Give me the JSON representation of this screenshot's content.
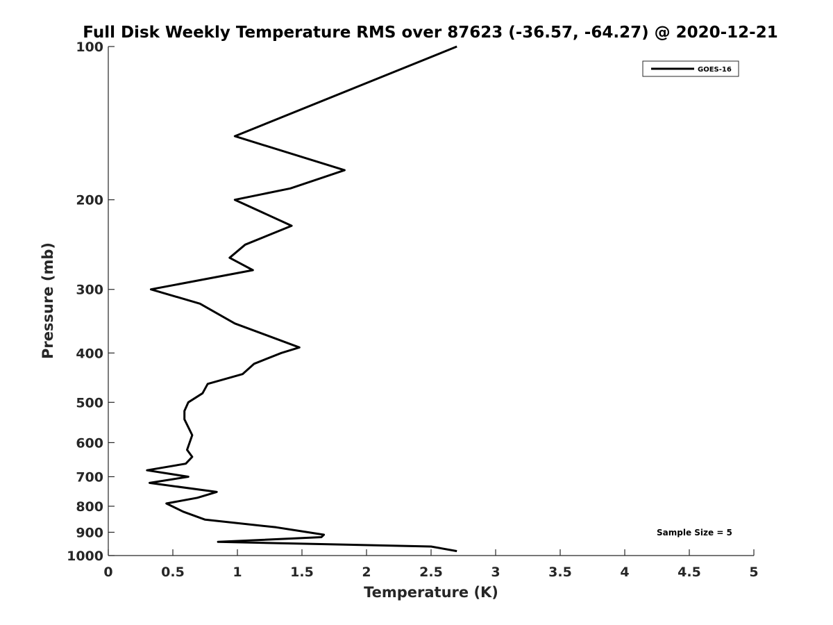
{
  "chart_data": {
    "type": "line",
    "title": "Full Disk Weekly Temperature RMS over 87623 (-36.57, -64.27) @ 2020-12-21",
    "xlabel": "Temperature (K)",
    "ylabel": "Pressure (mb)",
    "xlim": [
      0,
      5
    ],
    "ylim": [
      100,
      1000
    ],
    "y_scale": "log",
    "y_reversed": true,
    "grid": false,
    "legend_position": "top-right",
    "x_ticks": [
      "0",
      "0.5",
      "1",
      "1.5",
      "2",
      "2.5",
      "3",
      "3.5",
      "4",
      "4.5",
      "5"
    ],
    "y_ticks": [
      "100",
      "200",
      "300",
      "400",
      "500",
      "600",
      "700",
      "800",
      "900",
      "1000"
    ],
    "series": [
      {
        "name": "GOES-16",
        "color": "#000000",
        "points": [
          [
            2.7,
            100
          ],
          [
            0.98,
            150
          ],
          [
            1.83,
            175
          ],
          [
            1.41,
            190
          ],
          [
            0.98,
            200
          ],
          [
            1.42,
            225
          ],
          [
            1.06,
            245
          ],
          [
            0.94,
            260
          ],
          [
            1.12,
            275
          ],
          [
            0.33,
            300
          ],
          [
            0.71,
            320
          ],
          [
            0.98,
            350
          ],
          [
            1.48,
            390
          ],
          [
            1.34,
            400
          ],
          [
            1.13,
            420
          ],
          [
            1.04,
            440
          ],
          [
            0.77,
            460
          ],
          [
            0.73,
            480
          ],
          [
            0.62,
            500
          ],
          [
            0.59,
            520
          ],
          [
            0.59,
            540
          ],
          [
            0.65,
            580
          ],
          [
            0.61,
            620
          ],
          [
            0.65,
            640
          ],
          [
            0.6,
            660
          ],
          [
            0.3,
            680
          ],
          [
            0.62,
            700
          ],
          [
            0.32,
            720
          ],
          [
            0.84,
            750
          ],
          [
            0.69,
            770
          ],
          [
            0.45,
            790
          ],
          [
            0.58,
            820
          ],
          [
            0.75,
            850
          ],
          [
            1.3,
            880
          ],
          [
            1.67,
            910
          ],
          [
            1.65,
            920
          ],
          [
            0.85,
            940
          ],
          [
            2.5,
            960
          ],
          [
            2.7,
            980
          ]
        ]
      }
    ],
    "annotation": "Sample Size = 5"
  }
}
